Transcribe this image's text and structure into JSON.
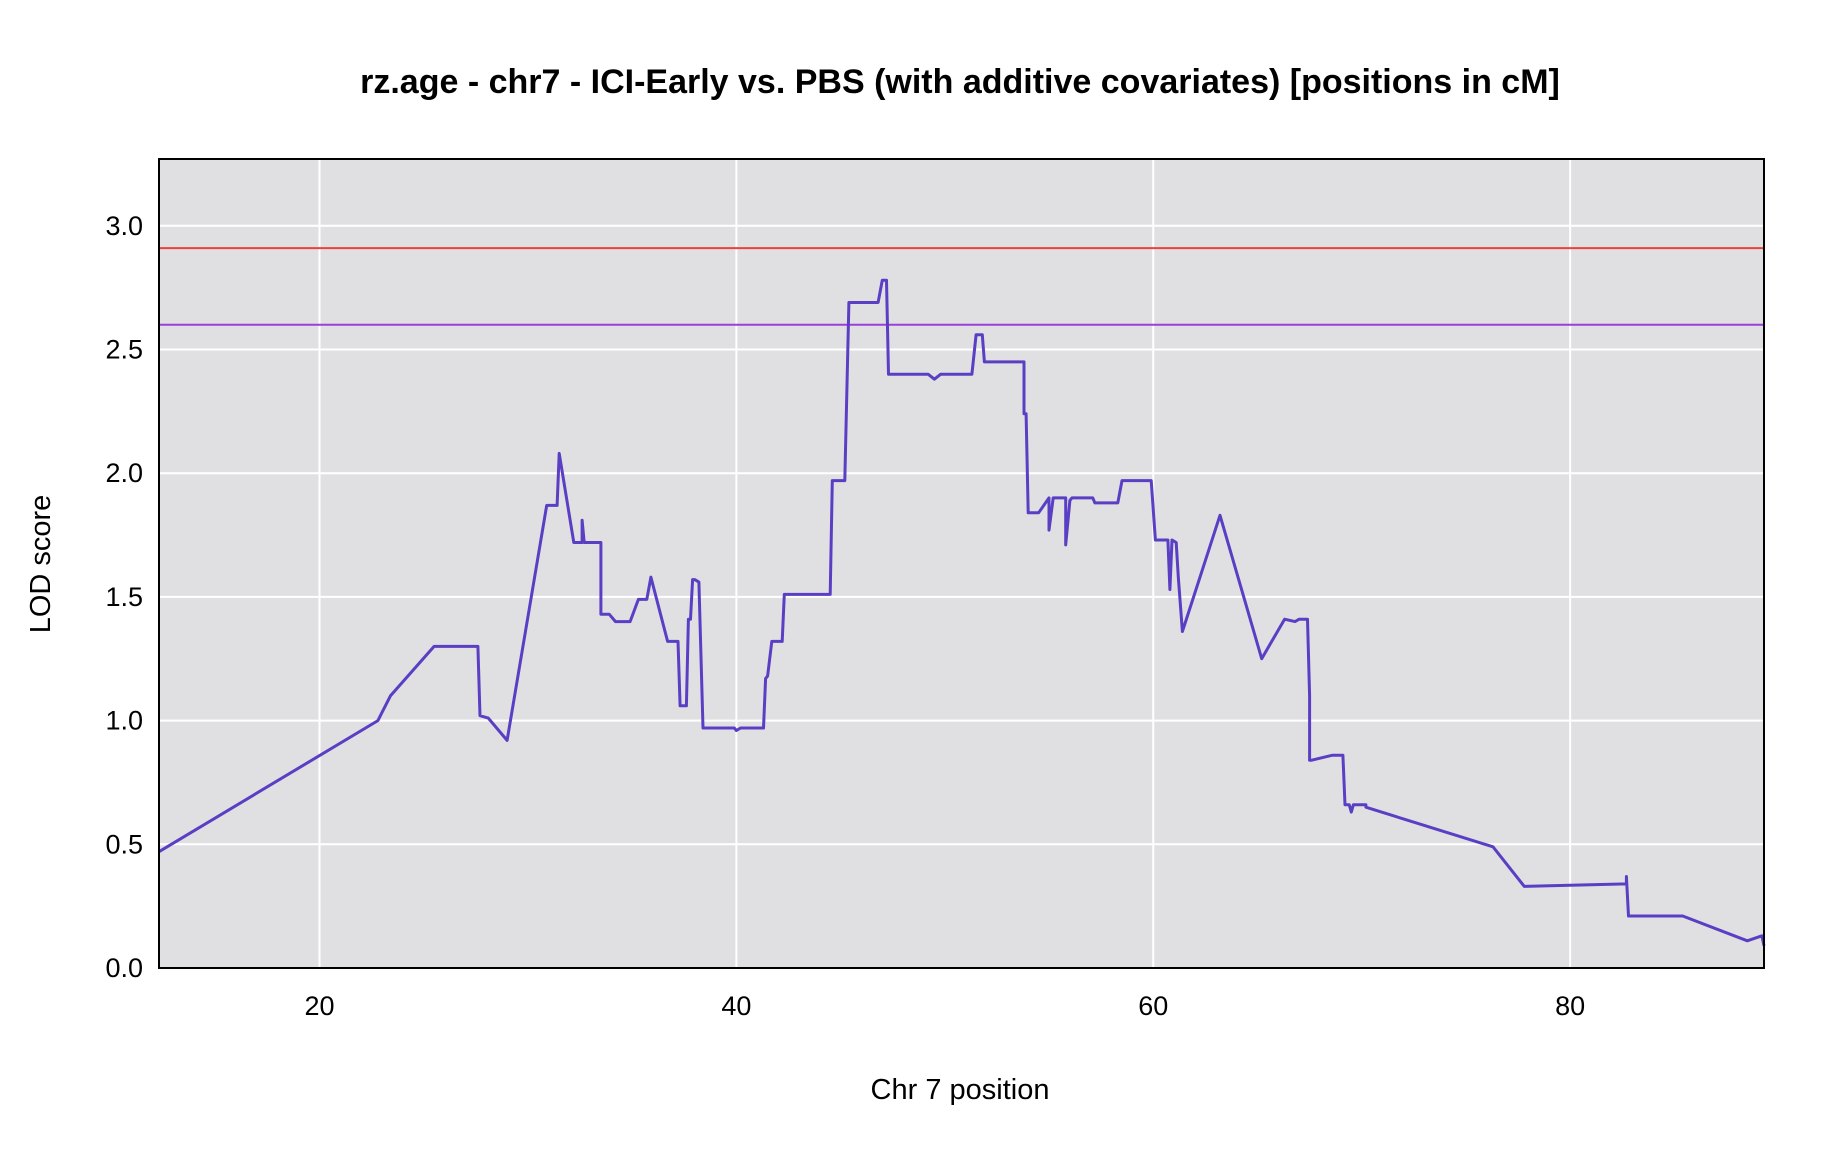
{
  "chart_data": {
    "type": "line",
    "title": "rz.age - chr7 - ICI-Early vs. PBS (with additive covariates) [positions in cM]",
    "xlabel": "Chr 7 position",
    "ylabel": "LOD score",
    "xlim": [
      12.3,
      89.3
    ],
    "ylim": [
      0,
      3.27
    ],
    "xticks": [
      20,
      40,
      60,
      80
    ],
    "yticks": [
      0.0,
      0.5,
      1.0,
      1.5,
      2.0,
      2.5,
      3.0
    ],
    "xtick_labels": [
      "20",
      "40",
      "60",
      "80"
    ],
    "ytick_labels": [
      "0.0",
      "0.5",
      "1.0",
      "1.5",
      "2.0",
      "2.5",
      "3.0"
    ],
    "grid": true,
    "background_color": "#e0e0e2",
    "grid_color": "#ffffff",
    "thresholds": [
      {
        "value": 2.91,
        "color": "#e8433a"
      },
      {
        "value": 2.6,
        "color": "#9b3fdc"
      }
    ],
    "series": [
      {
        "color": "#5a3fc4",
        "x": [
          12.3,
          22.8,
          23.4,
          25.5,
          27.6,
          27.7,
          28.1,
          29.0,
          30.9,
          31.4,
          31.5,
          32.2,
          32.6,
          32.6,
          32.7,
          33.5,
          33.5,
          33.9,
          34.2,
          34.9,
          35.3,
          35.5,
          35.7,
          35.9,
          36.7,
          37.2,
          37.3,
          37.6,
          37.7,
          37.8,
          37.9,
          38.0,
          38.2,
          38.4,
          39.9,
          40.0,
          40.2,
          41.3,
          41.4,
          41.5,
          41.7,
          42.2,
          42.3,
          44.5,
          44.6,
          45.2,
          45.4,
          46.8,
          47.0,
          47.2,
          47.3,
          49.2,
          49.5,
          49.8,
          51.3,
          51.5,
          51.8,
          51.9,
          52.2,
          53.8,
          53.8,
          53.9,
          54.0,
          54.5,
          55.0,
          55.0,
          55.2,
          55.8,
          55.8,
          56.0,
          56.1,
          56.3,
          57.1,
          57.2,
          58.3,
          58.5,
          59.9,
          60.1,
          60.7,
          60.8,
          60.9,
          61.1,
          61.2,
          61.4,
          63.2,
          65.2,
          66.3,
          66.8,
          67.0,
          67.4,
          67.5,
          67.5,
          67.6,
          68.6,
          69.1,
          69.2,
          69.4,
          69.5,
          69.6,
          70.2,
          70.2,
          76.3,
          77.8,
          82.7,
          82.7,
          82.8,
          83.3,
          83.4,
          85.4,
          88.5,
          89.2,
          89.3
        ],
        "y": [
          0.47,
          1.0,
          1.1,
          1.3,
          1.3,
          1.02,
          1.01,
          0.92,
          1.87,
          1.87,
          2.08,
          1.72,
          1.72,
          1.81,
          1.72,
          1.72,
          1.43,
          1.43,
          1.4,
          1.4,
          1.49,
          1.49,
          1.49,
          1.58,
          1.32,
          1.32,
          1.06,
          1.06,
          1.41,
          1.41,
          1.57,
          1.57,
          1.56,
          0.97,
          0.97,
          0.96,
          0.97,
          0.97,
          1.17,
          1.18,
          1.32,
          1.32,
          1.51,
          1.51,
          1.97,
          1.97,
          2.69,
          2.69,
          2.78,
          2.78,
          2.4,
          2.4,
          2.38,
          2.4,
          2.4,
          2.56,
          2.56,
          2.45,
          2.45,
          2.45,
          2.24,
          2.24,
          1.84,
          1.84,
          1.9,
          1.77,
          1.9,
          1.9,
          1.71,
          1.89,
          1.9,
          1.9,
          1.9,
          1.88,
          1.88,
          1.97,
          1.97,
          1.73,
          1.73,
          1.53,
          1.73,
          1.72,
          1.58,
          1.36,
          1.83,
          1.25,
          1.41,
          1.4,
          1.41,
          1.41,
          1.1,
          0.84,
          0.84,
          0.86,
          0.86,
          0.66,
          0.66,
          0.63,
          0.66,
          0.66,
          0.65,
          0.49,
          0.33,
          0.34,
          0.37,
          0.21,
          0.21,
          0.21,
          0.21,
          0.11,
          0.13,
          0.09
        ]
      }
    ]
  }
}
